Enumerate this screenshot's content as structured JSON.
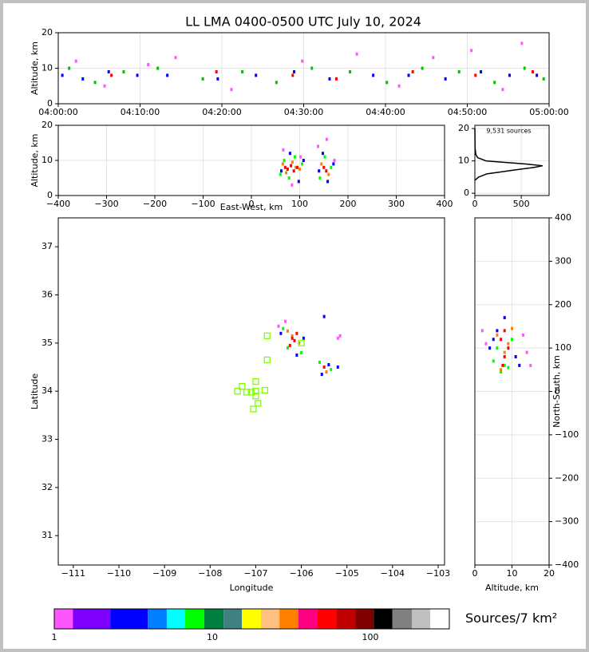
{
  "chart_data": [
    {
      "type": "scatter",
      "title": "LL LMA 0400-0500 UTC July 10, 2024",
      "ylabel": "Altitude, km",
      "xlim": [
        "04:00:00",
        "05:00:00"
      ],
      "xticks": [
        "04:00:00",
        "04:10:00",
        "04:20:00",
        "04:30:00",
        "04:40:00",
        "04:50:00",
        "05:00:00"
      ],
      "ylim": [
        0,
        20
      ],
      "yticks": [
        0,
        10,
        20
      ],
      "grid": true,
      "series": [
        {
          "color": "#0000ff",
          "x": [
            "04:00:30",
            "04:03:00",
            "04:06:10",
            "04:09:40",
            "04:13:20",
            "04:19:30",
            "04:24:10",
            "04:28:50",
            "04:33:10",
            "04:38:30",
            "04:42:50",
            "04:47:20",
            "04:51:40",
            "04:55:10",
            "04:58:30"
          ],
          "y": [
            8,
            7,
            9,
            8,
            8,
            7,
            8,
            9,
            7,
            8,
            8,
            7,
            9,
            8,
            8
          ]
        },
        {
          "color": "#00c000",
          "x": [
            "04:01:20",
            "04:04:30",
            "04:08:00",
            "04:12:10",
            "04:17:40",
            "04:22:30",
            "04:26:40",
            "04:31:00",
            "04:35:40",
            "04:40:10",
            "04:44:30",
            "04:49:00",
            "04:53:20",
            "04:57:00",
            "04:59:20"
          ],
          "y": [
            10,
            6,
            9,
            10,
            7,
            9,
            6,
            10,
            9,
            6,
            10,
            9,
            6,
            10,
            7
          ]
        },
        {
          "color": "#ff55ff",
          "x": [
            "04:02:10",
            "04:05:40",
            "04:11:00",
            "04:14:20",
            "04:21:10",
            "04:29:50",
            "04:36:30",
            "04:41:40",
            "04:45:50",
            "04:50:30",
            "04:54:20",
            "04:56:40"
          ],
          "y": [
            12,
            5,
            11,
            13,
            4,
            12,
            14,
            5,
            13,
            15,
            4,
            17
          ]
        },
        {
          "color": "#ff0000",
          "x": [
            "04:06:30",
            "04:19:20",
            "04:28:40",
            "04:34:00",
            "04:43:20",
            "04:51:00",
            "04:58:00"
          ],
          "y": [
            8,
            9,
            8,
            7,
            9,
            8,
            9
          ]
        }
      ]
    },
    {
      "type": "scatter",
      "xlabel": "East-West, km",
      "ylabel": "Altitude, km",
      "xlim": [
        -400,
        400
      ],
      "xticks": [
        {
          "value": -400,
          "label": "−400"
        },
        {
          "value": -300,
          "label": "−300"
        },
        {
          "value": -200,
          "label": "−200"
        },
        {
          "value": -100,
          "label": "−100"
        },
        0,
        100,
        200,
        300,
        400
      ],
      "ylim": [
        0,
        20
      ],
      "yticks": [
        0,
        10,
        20
      ],
      "grid": true,
      "series": [
        {
          "color": "#ff55ff",
          "x": [
            66,
            84,
            102,
            138,
            156,
            172
          ],
          "y": [
            13,
            3,
            11,
            14,
            16,
            10
          ]
        },
        {
          "color": "#0000ff",
          "x": [
            62,
            80,
            98,
            108,
            140,
            148,
            158,
            170
          ],
          "y": [
            7,
            12,
            4,
            10,
            7,
            12,
            4,
            9
          ]
        },
        {
          "color": "#00ff00",
          "x": [
            60,
            68,
            78,
            90,
            105,
            142,
            152,
            165
          ],
          "y": [
            6,
            10,
            5,
            11,
            9,
            5,
            11,
            8
          ]
        },
        {
          "color": "#ff8000",
          "x": [
            65,
            72,
            85,
            92,
            100,
            145,
            160
          ],
          "y": [
            9,
            6.5,
            9.5,
            8,
            7.5,
            9,
            6
          ]
        },
        {
          "color": "#ff0000",
          "x": [
            70,
            75,
            82,
            88,
            95,
            150,
            155
          ],
          "y": [
            8,
            7.5,
            8.5,
            7,
            8,
            8,
            7
          ]
        }
      ]
    },
    {
      "type": "line",
      "annotation": "9,531 sources",
      "xlim": [
        0,
        800
      ],
      "xticks": [
        0,
        500
      ],
      "ylim": [
        -0.7,
        21
      ],
      "yticks": [
        0,
        10,
        20
      ],
      "grid": true,
      "series": [
        {
          "color": "#000000",
          "x": [
            0,
            40,
            130,
            380,
            640,
            730,
            560,
            120,
            30,
            10,
            2,
            0
          ],
          "y": [
            4,
            5,
            6,
            7,
            8,
            8.5,
            9,
            10,
            11,
            12,
            14,
            20
          ]
        }
      ]
    },
    {
      "type": "scatter",
      "xlabel": "Longitude",
      "ylabel": "Latitude",
      "xlim": [
        -111.33,
        -102.86
      ],
      "xticks": [
        {
          "value": -111,
          "label": "−111"
        },
        {
          "value": -110,
          "label": "−110"
        },
        {
          "value": -109,
          "label": "−109"
        },
        {
          "value": -108,
          "label": "−108"
        },
        {
          "value": -107,
          "label": "−107"
        },
        {
          "value": -106,
          "label": "−106"
        },
        {
          "value": -105,
          "label": "−105"
        },
        {
          "value": -104,
          "label": "−104"
        },
        {
          "value": -103,
          "label": "−103"
        }
      ],
      "ylim": [
        30.39,
        37.6
      ],
      "yticks": [
        31,
        32,
        33,
        34,
        35,
        36,
        37
      ],
      "grid": false,
      "series": [
        {
          "color": "#ff55ff",
          "x": [
            -106.5,
            -106.35,
            -105.2,
            -105.15
          ],
          "y": [
            35.35,
            35.45,
            35.1,
            35.15
          ]
        },
        {
          "color": "#0000ff",
          "x": [
            -106.45,
            -105.95,
            -106.1,
            -105.55,
            -105.4,
            -105.2,
            -105.5
          ],
          "y": [
            35.2,
            35.1,
            34.75,
            34.35,
            34.55,
            34.5,
            35.55
          ]
        },
        {
          "color": "#00ff00",
          "x": [
            -106.4,
            -106.0,
            -106.3,
            -105.6,
            -105.35
          ],
          "y": [
            35.3,
            34.8,
            34.9,
            34.6,
            34.45
          ]
        },
        {
          "color": "#ff8000",
          "x": [
            -106.3,
            -106.05,
            -106.2,
            -105.45
          ],
          "y": [
            35.25,
            35.0,
            35.15,
            34.4
          ]
        },
        {
          "color": "#ff0000",
          "x": [
            -106.2,
            -106.1,
            -106.25,
            -106.15,
            -105.5
          ],
          "y": [
            35.1,
            35.2,
            34.95,
            35.05,
            34.5
          ]
        },
        {
          "color": "#80ff00",
          "marker": "square",
          "x": [
            -106.75,
            -106.0,
            -106.75,
            -107.0,
            -107.3,
            -107.4,
            -107.2,
            -107.0,
            -106.8,
            -107.0,
            -106.95,
            -107.05,
            -107.1
          ],
          "y": [
            35.15,
            35.0,
            34.65,
            34.2,
            34.1,
            34.0,
            33.98,
            34.0,
            34.02,
            33.9,
            33.75,
            33.63,
            33.98
          ]
        }
      ]
    },
    {
      "type": "scatter",
      "xlabel": "Altitude, km",
      "ylabel": "North-South, km",
      "y_axis_side": "right",
      "xlim": [
        0,
        20
      ],
      "xticks": [
        0,
        10,
        20
      ],
      "ylim": [
        -400,
        400
      ],
      "yticks": [
        {
          "value": -400,
          "label": "−400"
        },
        {
          "value": -300,
          "label": "−300"
        },
        {
          "value": -200,
          "label": "−200"
        },
        {
          "value": -100,
          "label": "−100"
        },
        0,
        100,
        200,
        300,
        400
      ],
      "grid": true,
      "series": [
        {
          "color": "#ff55ff",
          "x": [
            3,
            13,
            14,
            15,
            2
          ],
          "y": [
            110,
            130,
            90,
            60,
            140
          ]
        },
        {
          "color": "#0000ff",
          "x": [
            4,
            11,
            6,
            12,
            5,
            8
          ],
          "y": [
            100,
            80,
            140,
            60,
            120,
            170
          ]
        },
        {
          "color": "#00ff00",
          "x": [
            5,
            10,
            7,
            9,
            6,
            8
          ],
          "y": [
            70,
            120,
            45,
            55,
            100,
            60
          ]
        },
        {
          "color": "#ff8000",
          "x": [
            6,
            9,
            8,
            7,
            10
          ],
          "y": [
            130,
            110,
            90,
            50,
            145
          ]
        },
        {
          "color": "#ff0000",
          "x": [
            7,
            8,
            9,
            8,
            7.5
          ],
          "y": [
            120,
            140,
            100,
            80,
            60
          ]
        }
      ]
    },
    {
      "type": "colorbar",
      "label": "Sources/7 km²",
      "log_scale": true,
      "xlim": [
        1,
        316
      ],
      "xticks": [
        1,
        10,
        100
      ],
      "colors": [
        "#ff55ff",
        "#8000ff",
        "#0000ff",
        "#0080ff",
        "#00ffff",
        "#00ff00",
        "#008040",
        "#408080",
        "#ffff00",
        "#ffc080",
        "#ff8000",
        "#ff0080",
        "#ff0000",
        "#c00000",
        "#800000",
        "#000000",
        "#808080",
        "#c0c0c0",
        "#ffffff"
      ],
      "bounds": [
        1,
        1.31,
        2.26,
        3.9,
        5.15,
        6.73,
        8.9,
        11.8,
        15.4,
        20.3,
        26.6,
        35.1,
        46.4,
        60.7,
        80.2,
        105,
        138,
        183,
        239,
        316
      ]
    }
  ]
}
